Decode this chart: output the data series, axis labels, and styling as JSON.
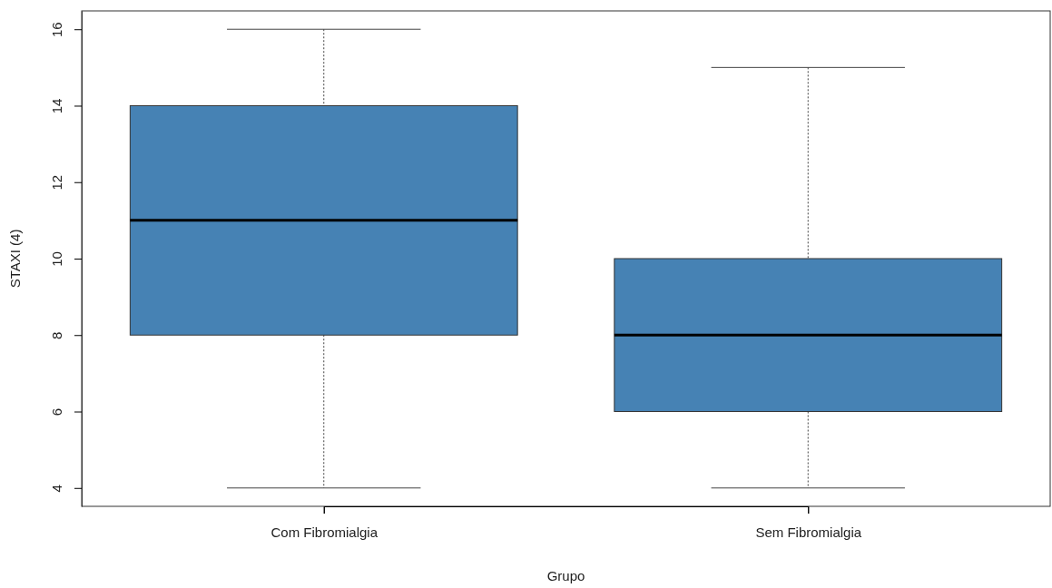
{
  "chart_data": {
    "type": "box",
    "xlabel": "Grupo",
    "ylabel": "STAXI (4)",
    "categories": [
      "Com Fibromialgia",
      "Sem Fibromialgia"
    ],
    "boxes": [
      {
        "low": 4,
        "q1": 8,
        "median": 11,
        "q3": 14,
        "high": 16
      },
      {
        "low": 4,
        "q1": 6,
        "median": 8,
        "q3": 10,
        "high": 15
      }
    ],
    "color": "#4682b4",
    "ylim": [
      3.52,
      16.48
    ],
    "yticks": [
      4,
      6,
      8,
      10,
      12,
      14,
      16
    ],
    "grid": false
  }
}
